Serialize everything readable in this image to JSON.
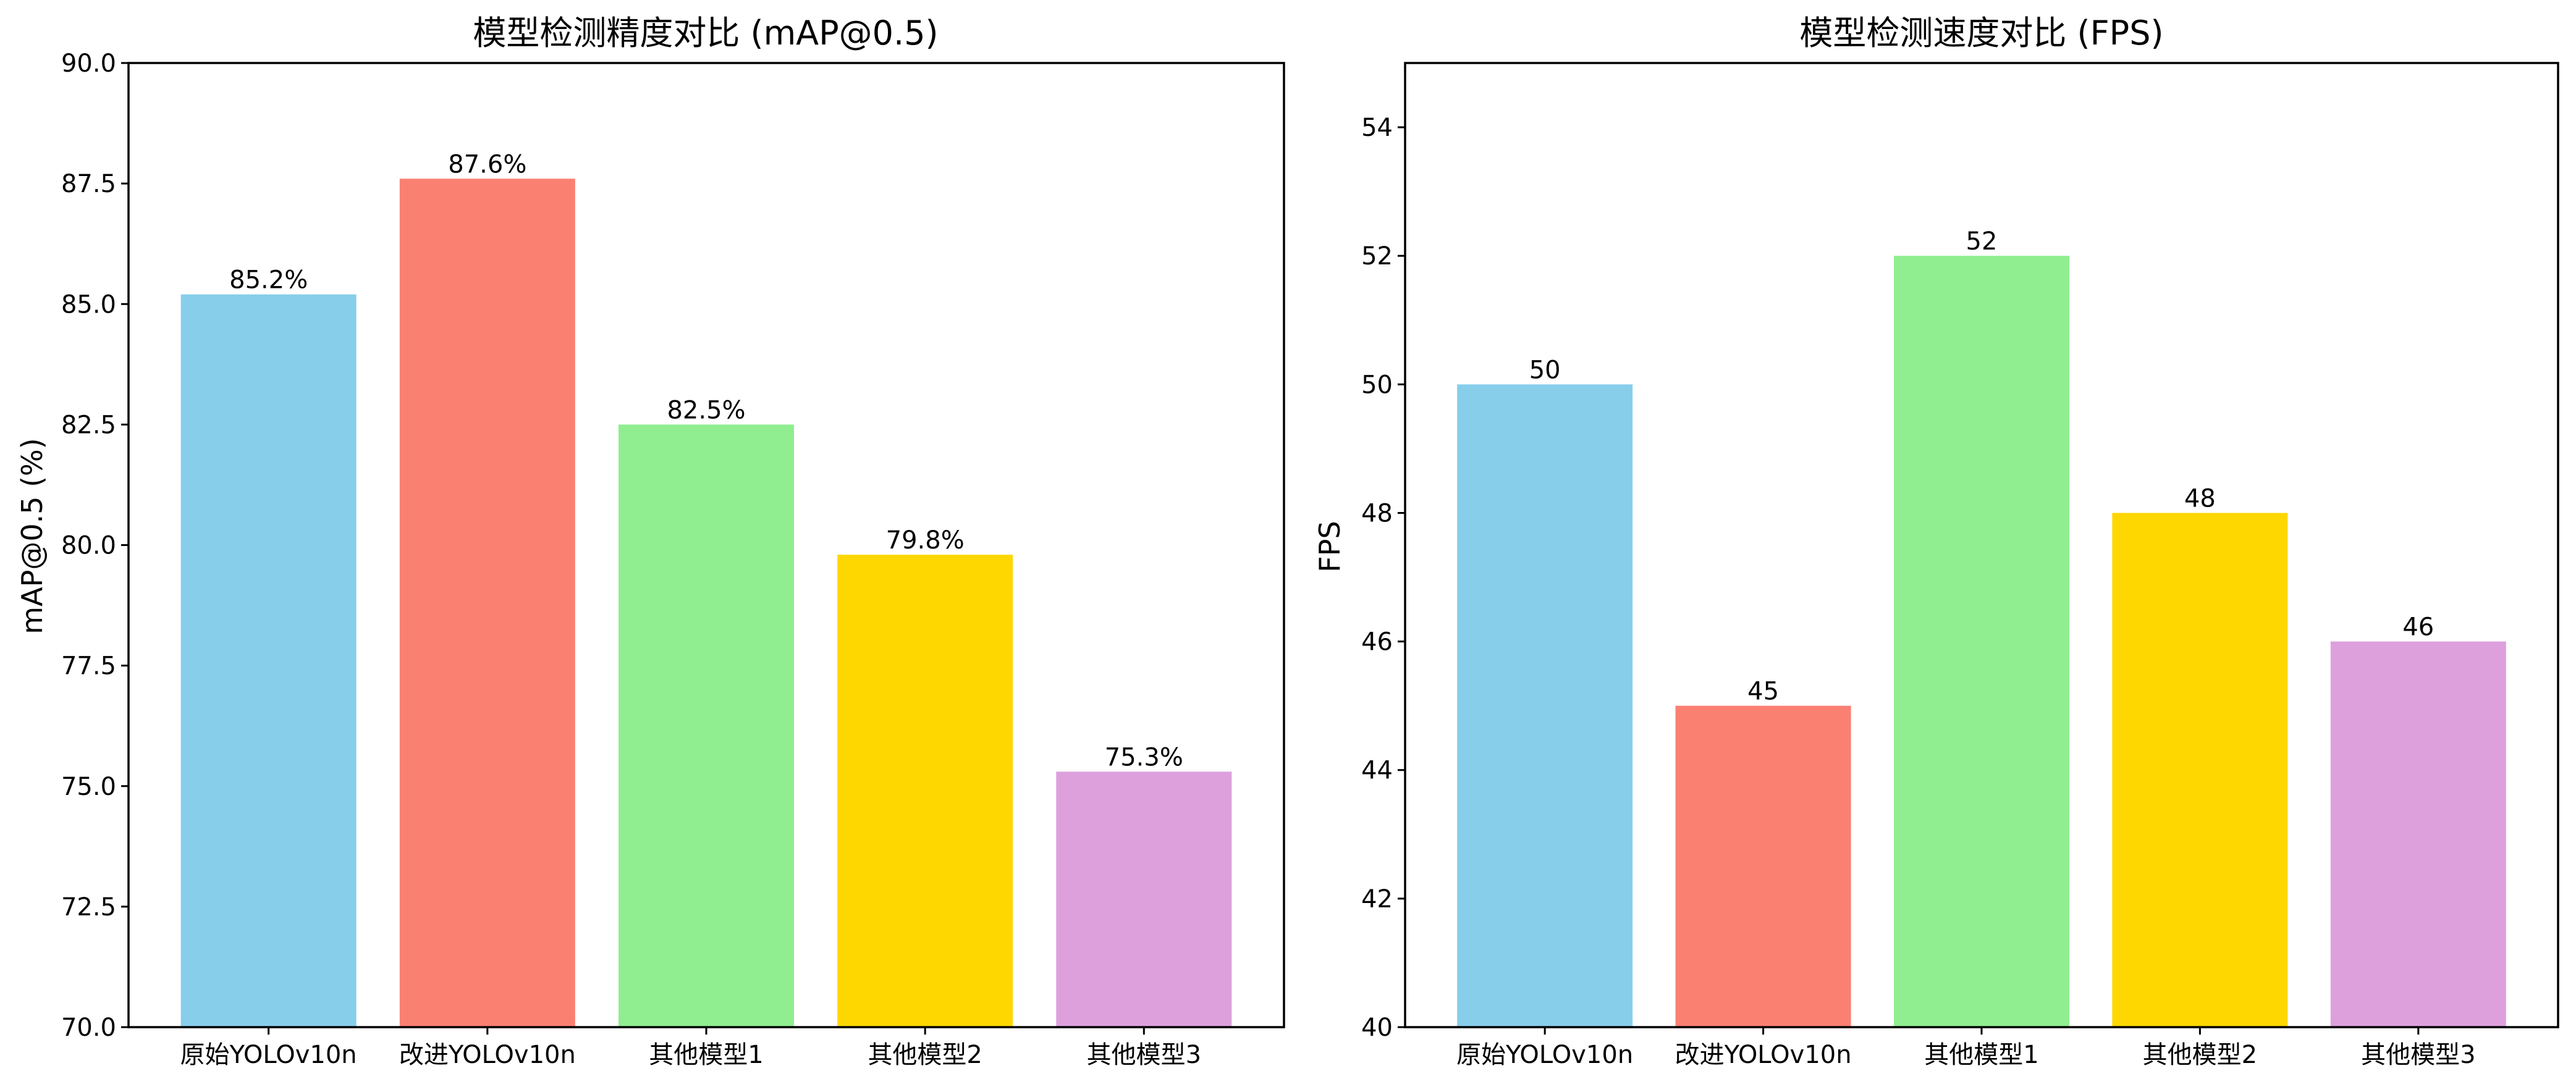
{
  "chart_data": [
    {
      "type": "bar",
      "title": "模型检测精度对比 (mAP@0.5)",
      "xlabel": "",
      "ylabel": "mAP@0.5 (%)",
      "categories": [
        "原始YOLOv10n",
        "改进YOLOv10n",
        "其他模型1",
        "其他模型2",
        "其他模型3"
      ],
      "values": [
        85.2,
        87.6,
        82.5,
        79.8,
        75.3
      ],
      "value_labels": [
        "85.2%",
        "87.6%",
        "82.5%",
        "79.8%",
        "75.3%"
      ],
      "colors": [
        "#87CEEB",
        "#FA8072",
        "#90EE90",
        "#FFD700",
        "#DDA0DD"
      ],
      "ylim": [
        70,
        90
      ],
      "yticks": [
        70.0,
        72.5,
        75.0,
        77.5,
        80.0,
        82.5,
        85.0,
        87.5,
        90.0
      ],
      "ytick_labels": [
        "70.0",
        "72.5",
        "75.0",
        "77.5",
        "80.0",
        "82.5",
        "85.0",
        "87.5",
        "90.0"
      ],
      "grid": false
    },
    {
      "type": "bar",
      "title": "模型检测速度对比 (FPS)",
      "xlabel": "",
      "ylabel": "FPS",
      "categories": [
        "原始YOLOv10n",
        "改进YOLOv10n",
        "其他模型1",
        "其他模型2",
        "其他模型3"
      ],
      "values": [
        50,
        45,
        52,
        48,
        46
      ],
      "value_labels": [
        "50",
        "45",
        "52",
        "48",
        "46"
      ],
      "colors": [
        "#87CEEB",
        "#FA8072",
        "#90EE90",
        "#FFD700",
        "#DDA0DD"
      ],
      "ylim": [
        40,
        55
      ],
      "yticks": [
        40,
        42,
        44,
        46,
        48,
        50,
        52,
        54
      ],
      "ytick_labels": [
        "40",
        "42",
        "44",
        "46",
        "48",
        "50",
        "52",
        "54"
      ],
      "grid": false
    }
  ]
}
